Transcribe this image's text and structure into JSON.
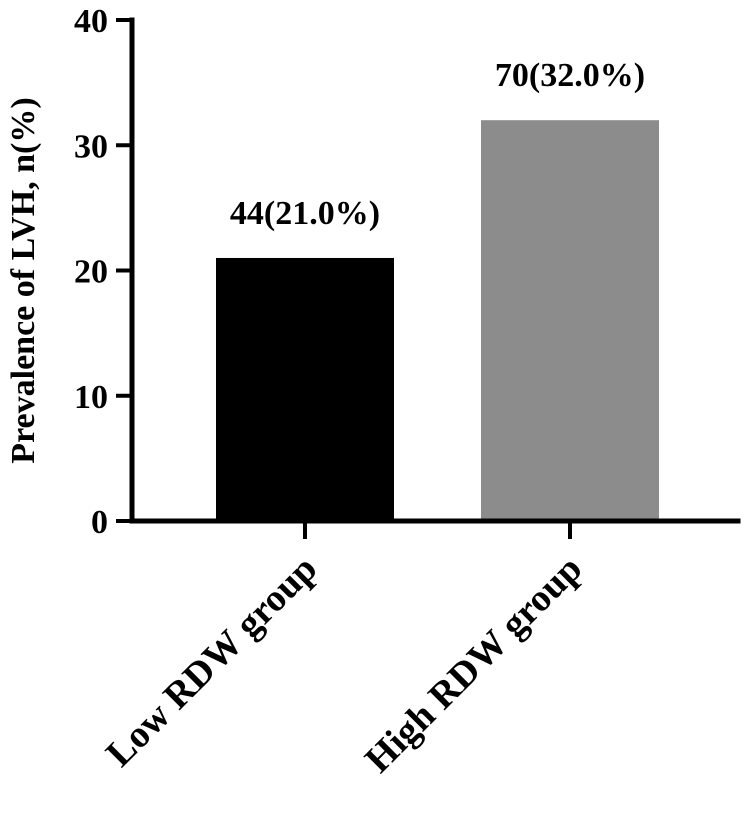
{
  "chart_data": {
    "type": "bar",
    "title": "",
    "xlabel": "",
    "ylabel": "Prevalence of LVH, n(%)",
    "ylim": [
      0,
      40
    ],
    "yticks": [
      0,
      10,
      20,
      30,
      40
    ],
    "categories": [
      "Low RDW group",
      "High RDW group"
    ],
    "values": [
      21.0,
      32.0
    ],
    "data_labels": [
      "44(21.0%)",
      "70(32.0%)"
    ],
    "colors": [
      "#000000",
      "#8c8c8c"
    ],
    "grid": false,
    "legend": "none"
  }
}
